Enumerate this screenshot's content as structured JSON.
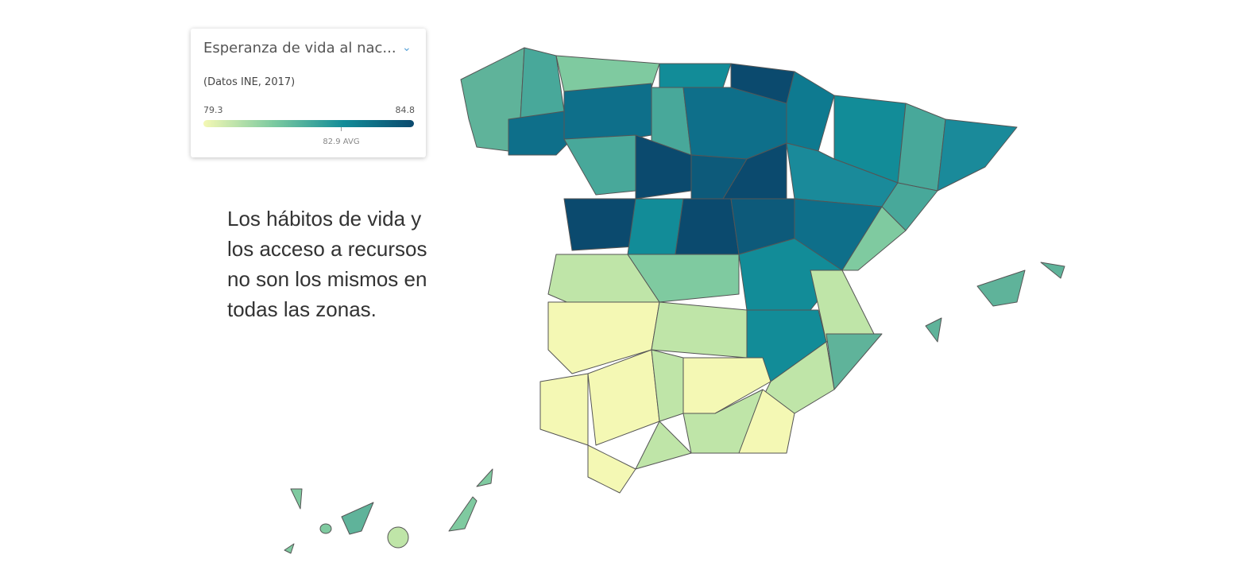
{
  "legend": {
    "title": "Esperanza de vida al nac...",
    "source": "(Datos INE, 2017)",
    "min": 79.3,
    "max": 84.8,
    "avg": {
      "value": 82.9,
      "label": "82.9 AVG"
    },
    "gradient": [
      "#f4f8b4",
      "#7ccaa0",
      "#128c98",
      "#0b4a6e"
    ]
  },
  "text": "Los hábitos de vida y los acceso a recursos no son los mismos en todas las zonas."
}
